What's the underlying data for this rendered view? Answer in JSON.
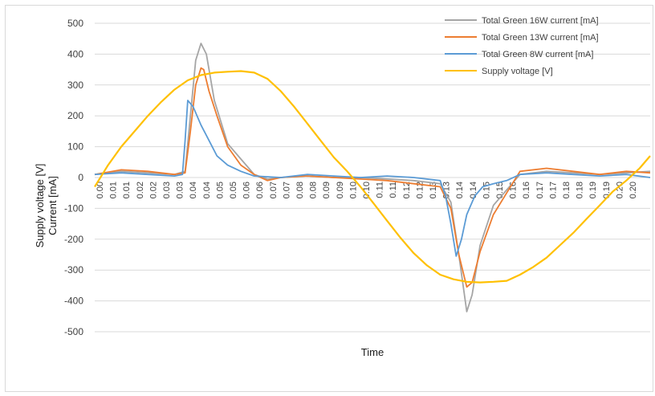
{
  "chart_data": {
    "type": "line",
    "xlabel": "Time",
    "ylabel_lines": [
      "Supply voltage [V]",
      "Current [mA]"
    ],
    "x_tick_labels": [
      "0.00",
      "0.01",
      "0.01",
      "0.02",
      "0.02",
      "0.03",
      "0.03",
      "0.04",
      "0.04",
      "0.05",
      "0.05",
      "0.06",
      "0.06",
      "0.07",
      "0.07",
      "0.08",
      "0.08",
      "0.09",
      "0.09",
      "0.10",
      "0.10",
      "0.11",
      "0.11",
      "0.12",
      "0.12",
      "0.13",
      "0.13",
      "0.14",
      "0.14",
      "0.15",
      "0.15",
      "0.16",
      "0.16",
      "0.17",
      "0.17",
      "0.18",
      "0.18",
      "0.19",
      "0.19",
      "0.20",
      "0.20"
    ],
    "x_range": [
      0,
      0.209
    ],
    "ylim": [
      -500,
      500
    ],
    "y_ticks": [
      500,
      400,
      300,
      200,
      100,
      0,
      -100,
      -200,
      -300,
      -400,
      -500
    ],
    "grid": "horizontal",
    "legend_position": "top-right",
    "series": [
      {
        "name": "Total Green 16W current [mA]",
        "color": "#a5a5a5",
        "x": [
          0,
          0.01,
          0.02,
          0.03,
          0.034,
          0.036,
          0.038,
          0.04,
          0.042,
          0.045,
          0.05,
          0.055,
          0.06,
          0.065,
          0.07,
          0.08,
          0.09,
          0.1,
          0.11,
          0.12,
          0.13,
          0.134,
          0.137,
          0.14,
          0.142,
          0.145,
          0.15,
          0.155,
          0.16,
          0.17,
          0.18,
          0.19,
          0.2,
          0.209
        ],
        "values": [
          10,
          20,
          15,
          10,
          20,
          200,
          380,
          435,
          400,
          250,
          110,
          60,
          10,
          -5,
          0,
          5,
          0,
          0,
          -5,
          -10,
          -20,
          -80,
          -250,
          -435,
          -380,
          -220,
          -90,
          -40,
          10,
          20,
          15,
          10,
          15,
          20
        ]
      },
      {
        "name": "Total Green 13W current [mA]",
        "color": "#ed7d31",
        "x": [
          0,
          0.01,
          0.02,
          0.03,
          0.034,
          0.036,
          0.038,
          0.04,
          0.041,
          0.043,
          0.046,
          0.05,
          0.055,
          0.06,
          0.065,
          0.07,
          0.08,
          0.09,
          0.1,
          0.11,
          0.12,
          0.13,
          0.134,
          0.137,
          0.14,
          0.142,
          0.145,
          0.15,
          0.155,
          0.16,
          0.17,
          0.18,
          0.19,
          0.2,
          0.209
        ],
        "values": [
          10,
          25,
          20,
          10,
          15,
          150,
          300,
          355,
          350,
          280,
          200,
          100,
          40,
          10,
          -10,
          0,
          5,
          0,
          -5,
          -10,
          -20,
          -30,
          -100,
          -250,
          -355,
          -340,
          -240,
          -120,
          -50,
          20,
          30,
          20,
          10,
          20,
          15
        ]
      },
      {
        "name": "Total Green 8W current [mA]",
        "color": "#5b9bd5",
        "x": [
          0,
          0.01,
          0.02,
          0.03,
          0.033,
          0.034,
          0.035,
          0.037,
          0.04,
          0.043,
          0.046,
          0.05,
          0.055,
          0.06,
          0.07,
          0.08,
          0.09,
          0.1,
          0.11,
          0.12,
          0.13,
          0.132,
          0.134,
          0.136,
          0.138,
          0.14,
          0.143,
          0.146,
          0.15,
          0.155,
          0.16,
          0.17,
          0.18,
          0.19,
          0.2,
          0.209
        ],
        "values": [
          10,
          15,
          10,
          5,
          10,
          120,
          250,
          230,
          170,
          120,
          70,
          40,
          20,
          5,
          0,
          10,
          5,
          0,
          5,
          0,
          -10,
          -60,
          -150,
          -255,
          -200,
          -120,
          -60,
          -30,
          -20,
          -10,
          10,
          15,
          10,
          5,
          10,
          0
        ]
      },
      {
        "name": "Supply voltage [V]",
        "color": "#ffc000",
        "x": [
          0,
          0.005,
          0.01,
          0.015,
          0.02,
          0.025,
          0.03,
          0.035,
          0.04,
          0.045,
          0.05,
          0.055,
          0.06,
          0.065,
          0.07,
          0.075,
          0.08,
          0.085,
          0.09,
          0.095,
          0.1,
          0.105,
          0.11,
          0.115,
          0.12,
          0.125,
          0.13,
          0.135,
          0.14,
          0.145,
          0.15,
          0.155,
          0.16,
          0.165,
          0.17,
          0.175,
          0.18,
          0.185,
          0.19,
          0.195,
          0.2,
          0.205,
          0.209
        ],
        "values": [
          -30,
          40,
          100,
          150,
          200,
          245,
          285,
          315,
          332,
          340,
          343,
          345,
          340,
          320,
          280,
          230,
          175,
          120,
          65,
          20,
          -30,
          -85,
          -140,
          -195,
          -245,
          -285,
          -315,
          -330,
          -338,
          -340,
          -338,
          -335,
          -315,
          -290,
          -260,
          -220,
          -180,
          -135,
          -90,
          -45,
          -10,
          30,
          70
        ]
      }
    ]
  }
}
